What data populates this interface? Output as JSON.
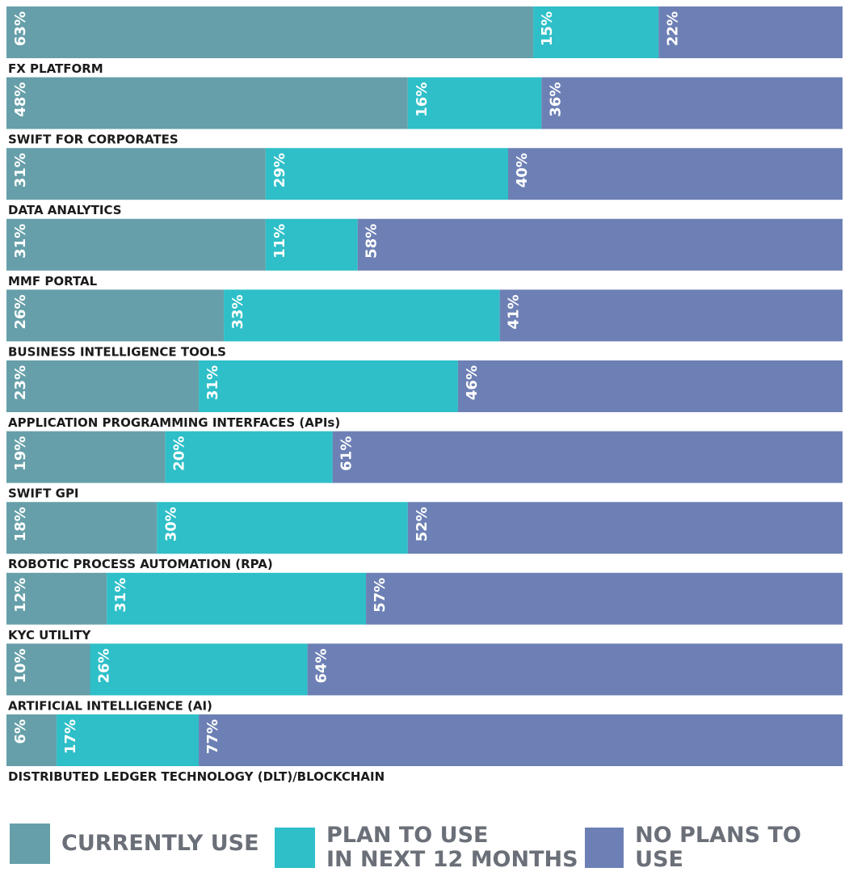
{
  "chart_data": {
    "type": "bar",
    "orientation": "horizontal",
    "stacked": true,
    "categories": [
      "FX PLATFORM",
      "SWIFT FOR CORPORATES",
      "DATA ANALYTICS",
      "MMF PORTAL",
      "BUSINESS INTELLIGENCE TOOLS",
      "APPLICATION PROGRAMMING INTERFACES (APIs)",
      "SWIFT GPI",
      "ROBOTIC PROCESS AUTOMATION (RPA)",
      "KYC UTILITY",
      "ARTIFICIAL INTELLIGENCE (AI)",
      "DISTRIBUTED LEDGER TECHNOLOGY (DLT)/BLOCKCHAIN"
    ],
    "series": [
      {
        "name": "CURRENTLY USE",
        "color": "#669fa9",
        "values": [
          63,
          48,
          31,
          31,
          26,
          23,
          19,
          18,
          12,
          10,
          6
        ]
      },
      {
        "name": "PLAN TO USE IN NEXT 12 MONTHS",
        "color": "#2ebfc8",
        "values": [
          15,
          16,
          29,
          11,
          33,
          31,
          20,
          30,
          31,
          26,
          17
        ]
      },
      {
        "name": "NO PLANS TO USE",
        "color": "#6d80b5",
        "values": [
          22,
          36,
          40,
          58,
          41,
          46,
          61,
          52,
          57,
          64,
          77
        ]
      }
    ],
    "value_suffix": "%",
    "xlim": [
      0,
      100
    ],
    "legend_position": "bottom"
  },
  "legend": {
    "items": [
      {
        "label": "CURRENTLY USE",
        "color": "#669fa9"
      },
      {
        "label": "PLAN TO USE\nIN NEXT 12 MONTHS",
        "color": "#2ebfc8"
      },
      {
        "label": "NO PLANS TO USE",
        "color": "#6d80b5"
      }
    ]
  }
}
